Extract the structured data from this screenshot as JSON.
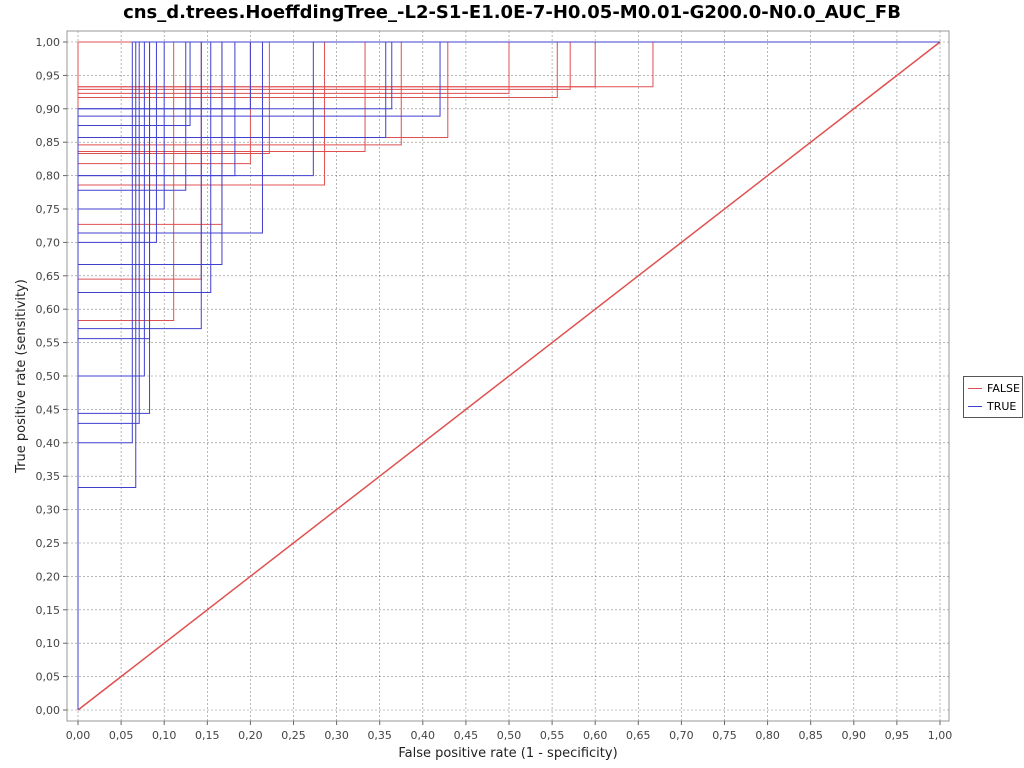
{
  "chart_data": {
    "type": "line",
    "title": "cns_d.trees.HoeffdingTree_-L2-S1-E1.0E-7-H0.05-M0.01-G200.0-N0.0_AUC_FB",
    "xlabel": "False positive rate (1 - specificity)",
    "ylabel": "True positive rate (sensitivity)",
    "xlim": [
      0,
      1
    ],
    "ylim": [
      0,
      1
    ],
    "tick_labels": [
      "0,00",
      "0,05",
      "0,10",
      "0,15",
      "0,20",
      "0,25",
      "0,30",
      "0,35",
      "0,40",
      "0,45",
      "0,50",
      "0,55",
      "0,60",
      "0,65",
      "0,70",
      "0,75",
      "0,80",
      "0,85",
      "0,90",
      "0,95",
      "1,00"
    ],
    "grid": true,
    "legend_position": "right",
    "series": [
      {
        "name": "FALSE",
        "color": "#e05050",
        "curves": [
          {
            "fpr": 0.0,
            "tpr": 0.636
          },
          {
            "fpr": 0.111,
            "tpr": 0.583
          },
          {
            "fpr": 0.143,
            "tpr": 0.645
          },
          {
            "fpr": 0.167,
            "tpr": 0.727
          },
          {
            "fpr": 0.2,
            "tpr": 0.818
          },
          {
            "fpr": 0.222,
            "tpr": 0.833
          },
          {
            "fpr": 0.286,
            "tpr": 0.786
          },
          {
            "fpr": 0.333,
            "tpr": 0.836
          },
          {
            "fpr": 0.375,
            "tpr": 0.846
          },
          {
            "fpr": 0.429,
            "tpr": 0.857
          },
          {
            "fpr": 0.5,
            "tpr": 0.923
          },
          {
            "fpr": 0.556,
            "tpr": 0.917
          },
          {
            "fpr": 0.571,
            "tpr": 0.929
          },
          {
            "fpr": 0.6,
            "tpr": 0.933
          },
          {
            "fpr": 0.667,
            "tpr": 0.933
          }
        ],
        "diagonal": [
          [
            0,
            0
          ],
          [
            1,
            1
          ]
        ]
      },
      {
        "name": "TRUE",
        "color": "#4040d0",
        "curves": [
          {
            "fpr": 0.067,
            "tpr": 0.333
          },
          {
            "fpr": 0.063,
            "tpr": 0.4
          },
          {
            "fpr": 0.071,
            "tpr": 0.429
          },
          {
            "fpr": 0.083,
            "tpr": 0.444
          },
          {
            "fpr": 0.077,
            "tpr": 0.5
          },
          {
            "fpr": 0.083,
            "tpr": 0.556
          },
          {
            "fpr": 0.143,
            "tpr": 0.571
          },
          {
            "fpr": 0.154,
            "tpr": 0.625
          },
          {
            "fpr": 0.167,
            "tpr": 0.667
          },
          {
            "fpr": 0.091,
            "tpr": 0.7
          },
          {
            "fpr": 0.214,
            "tpr": 0.714
          },
          {
            "fpr": 0.1,
            "tpr": 0.75
          },
          {
            "fpr": 0.125,
            "tpr": 0.778
          },
          {
            "fpr": 0.182,
            "tpr": 0.8
          },
          {
            "fpr": 0.273,
            "tpr": 0.8
          },
          {
            "fpr": 0.357,
            "tpr": 0.857
          },
          {
            "fpr": 0.13,
            "tpr": 0.875
          },
          {
            "fpr": 0.42,
            "tpr": 0.889
          },
          {
            "fpr": 0.2,
            "tpr": 0.9
          },
          {
            "fpr": 0.364,
            "tpr": 0.9
          }
        ]
      }
    ]
  }
}
